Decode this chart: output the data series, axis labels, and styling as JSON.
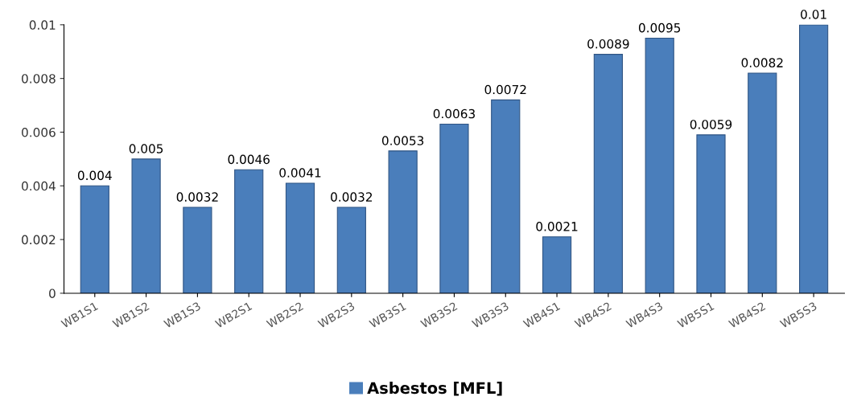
{
  "chart_data": {
    "type": "bar",
    "categories": [
      "WB1S1",
      "WB1S2",
      "WB1S3",
      "WB2S1",
      "WB2S2",
      "WB2S3",
      "WB3S1",
      "WB3S2",
      "WB3S3",
      "WB4S1",
      "WB4S2",
      "WB4S3",
      "WB5S1",
      "WB4S2",
      "WB5S3"
    ],
    "series": [
      {
        "name": "Asbestos [MFL]",
        "color": "#4a7ebb",
        "values": [
          0.004,
          0.005,
          0.0032,
          0.0046,
          0.0041,
          0.0032,
          0.0053,
          0.0063,
          0.0072,
          0.0021,
          0.0089,
          0.0095,
          0.0059,
          0.0082,
          0.01
        ]
      }
    ],
    "ylim": [
      0,
      0.01
    ],
    "yticks": [
      0,
      0.002,
      0.004,
      0.006,
      0.008,
      0.01
    ],
    "data_labels": true,
    "legend": "bottom",
    "grid": false
  }
}
